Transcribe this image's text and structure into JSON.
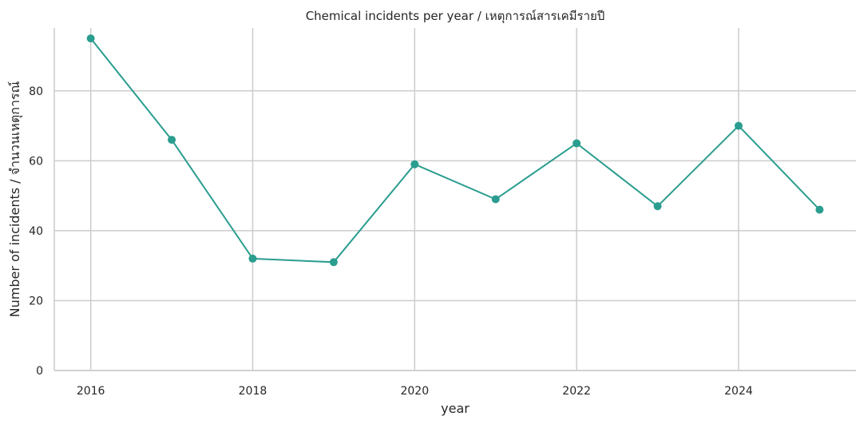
{
  "chart_data": {
    "type": "line",
    "title": "Chemical incidents per year / เหตุการณ์สารเคมีรายปี",
    "xlabel": "year",
    "ylabel": "Number of incidents / จำนวนเหตุการณ์",
    "x": [
      2016,
      2017,
      2018,
      2019,
      2020,
      2021,
      2022,
      2023,
      2024,
      2025
    ],
    "series": [
      {
        "values": [
          95,
          66,
          32,
          31,
          59,
          49,
          65,
          47,
          70,
          46
        ]
      }
    ],
    "xlim": [
      2015.55,
      2025.45
    ],
    "ylim": [
      0,
      98
    ],
    "xticks": [
      2016,
      2018,
      2020,
      2022,
      2024
    ],
    "yticks": [
      0,
      20,
      40,
      60,
      80
    ],
    "grid": true,
    "line_color": "#2a9d8f",
    "grid_color": "#cccccc",
    "axis_color": "#cccccc"
  }
}
